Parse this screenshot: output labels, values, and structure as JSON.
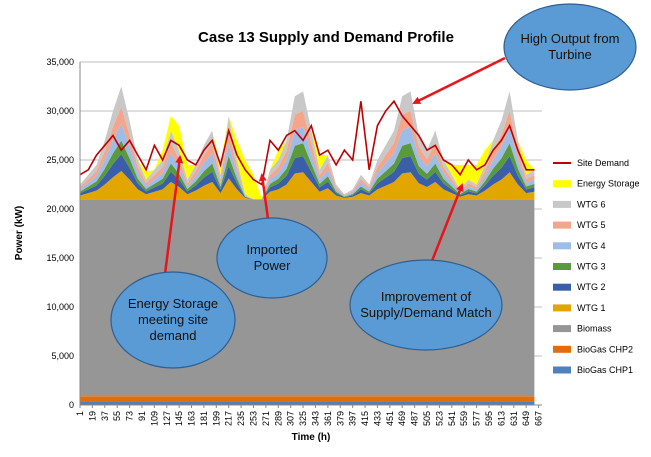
{
  "chart_data": {
    "type": "area",
    "title": "Case 13 Supply and Demand Profile",
    "x_label": "Time (h)",
    "y_label": "Power (kW)",
    "xlim": [
      1,
      672
    ],
    "xticks": [
      1,
      19,
      37,
      55,
      73,
      91,
      109,
      127,
      145,
      163,
      181,
      199,
      217,
      235,
      253,
      271,
      289,
      307,
      325,
      343,
      361,
      379,
      397,
      415,
      433,
      451,
      469,
      487,
      505,
      523,
      541,
      559,
      577,
      595,
      613,
      631,
      649,
      667
    ],
    "ylim": [
      0,
      35000
    ],
    "yticks": [
      0,
      {
        "value": 5000,
        "label": "5,000"
      },
      {
        "value": 10000,
        "label": "10,000"
      },
      {
        "value": 15000,
        "label": "15,000"
      },
      {
        "value": 20000,
        "label": "20,000"
      },
      {
        "value": 25000,
        "label": "25,000"
      },
      {
        "value": 30000,
        "label": "30,000"
      },
      {
        "value": 35000,
        "label": "35,000"
      }
    ],
    "grid": true,
    "x": [
      1,
      13,
      25,
      37,
      49,
      61,
      73,
      85,
      97,
      109,
      121,
      133,
      145,
      157,
      169,
      181,
      193,
      205,
      217,
      229,
      241,
      253,
      265,
      277,
      289,
      301,
      313,
      325,
      337,
      349,
      361,
      373,
      385,
      397,
      409,
      421,
      433,
      445,
      457,
      469,
      481,
      493,
      505,
      517,
      529,
      541,
      553,
      565,
      577,
      589,
      601,
      613,
      625,
      637,
      649,
      661
    ],
    "series": [
      {
        "name": "BioGas CHP1",
        "color": "#4f81bd",
        "values": [
          400,
          400,
          400,
          400,
          400,
          400,
          400,
          400,
          400,
          400,
          400,
          400,
          400,
          400,
          400,
          400,
          400,
          400,
          400,
          400,
          400,
          400,
          400,
          400,
          400,
          400,
          400,
          400,
          400,
          400,
          400,
          400,
          400,
          400,
          400,
          400,
          400,
          400,
          400,
          400,
          400,
          400,
          400,
          400,
          400,
          400,
          400,
          400,
          400,
          400,
          400,
          400,
          400,
          400,
          400,
          400
        ]
      },
      {
        "name": "BioGas CHP2",
        "color": "#e46c0a",
        "values": [
          500,
          500,
          500,
          500,
          500,
          500,
          500,
          500,
          500,
          500,
          500,
          500,
          500,
          500,
          500,
          500,
          500,
          500,
          500,
          500,
          500,
          500,
          500,
          500,
          500,
          500,
          500,
          500,
          500,
          500,
          500,
          500,
          500,
          500,
          500,
          500,
          500,
          500,
          500,
          500,
          500,
          500,
          500,
          500,
          500,
          500,
          500,
          500,
          500,
          500,
          500,
          500,
          500,
          500,
          500,
          500
        ]
      },
      {
        "name": "Biomass",
        "color": "#969696",
        "values": [
          20100,
          20100,
          20100,
          20100,
          20100,
          20100,
          20100,
          20100,
          20100,
          20100,
          20100,
          20100,
          20100,
          20100,
          20100,
          20100,
          20100,
          20100,
          20100,
          20100,
          20100,
          20100,
          20100,
          20100,
          20100,
          20100,
          20100,
          20100,
          20100,
          20100,
          20100,
          20100,
          20100,
          20100,
          20100,
          20100,
          20100,
          20100,
          20100,
          20100,
          20100,
          20100,
          20100,
          20100,
          20100,
          20100,
          20100,
          20100,
          20100,
          20100,
          20100,
          20100,
          20100,
          20100,
          20100,
          20100
        ]
      },
      {
        "name": "WTG 1",
        "color": "#e3a600",
        "values": [
          375,
          625,
          875,
          1500,
          2250,
          2875,
          2000,
          1000,
          500,
          750,
          1000,
          1750,
          1250,
          500,
          875,
          1375,
          1750,
          625,
          2125,
          1000,
          125,
          0,
          0,
          750,
          1000,
          1500,
          2625,
          2750,
          1750,
          750,
          1125,
          375,
          125,
          250,
          625,
          375,
          1000,
          1375,
          1750,
          2625,
          2750,
          1625,
          1250,
          1750,
          1000,
          625,
          250,
          500,
          375,
          875,
          1500,
          2000,
          2750,
          1500,
          625,
          750
        ]
      },
      {
        "name": "WTG 2",
        "color": "#3a5fa8",
        "values": [
          225,
          375,
          525,
          900,
          1350,
          1725,
          1200,
          600,
          300,
          450,
          600,
          1050,
          750,
          300,
          525,
          825,
          1050,
          375,
          1275,
          600,
          75,
          0,
          0,
          450,
          600,
          900,
          1575,
          1650,
          1050,
          450,
          675,
          225,
          75,
          150,
          375,
          225,
          600,
          825,
          1050,
          1575,
          1650,
          975,
          750,
          1050,
          600,
          375,
          150,
          300,
          225,
          525,
          900,
          1200,
          1650,
          900,
          375,
          450
        ]
      },
      {
        "name": "WTG 3",
        "color": "#5a9a3c",
        "values": [
          180,
          300,
          420,
          720,
          1080,
          1380,
          960,
          480,
          240,
          360,
          480,
          840,
          600,
          240,
          420,
          660,
          840,
          300,
          1020,
          480,
          60,
          0,
          0,
          360,
          480,
          720,
          1260,
          1320,
          840,
          360,
          540,
          180,
          60,
          120,
          300,
          180,
          480,
          660,
          840,
          1260,
          1320,
          780,
          600,
          840,
          480,
          300,
          120,
          240,
          180,
          420,
          720,
          960,
          1320,
          720,
          300,
          360
        ]
      },
      {
        "name": "WTG 4",
        "color": "#9dbde6",
        "values": [
          225,
          375,
          525,
          900,
          1350,
          1725,
          1200,
          600,
          300,
          450,
          600,
          1050,
          750,
          300,
          525,
          825,
          1050,
          375,
          1275,
          600,
          75,
          0,
          0,
          450,
          600,
          900,
          1575,
          1650,
          1050,
          450,
          675,
          225,
          75,
          150,
          375,
          225,
          600,
          825,
          1050,
          1575,
          1650,
          975,
          750,
          1050,
          600,
          375,
          150,
          300,
          225,
          525,
          900,
          1200,
          1650,
          900,
          375,
          450
        ]
      },
      {
        "name": "WTG 5",
        "color": "#f4a58a",
        "values": [
          225,
          375,
          525,
          900,
          1350,
          1725,
          1200,
          600,
          300,
          450,
          600,
          1050,
          750,
          300,
          525,
          825,
          1050,
          375,
          1275,
          600,
          75,
          0,
          0,
          450,
          600,
          900,
          1575,
          1650,
          1050,
          450,
          675,
          225,
          75,
          150,
          375,
          225,
          600,
          825,
          1050,
          1575,
          1650,
          975,
          750,
          1050,
          600,
          375,
          150,
          300,
          225,
          525,
          900,
          1200,
          1650,
          900,
          375,
          450
        ]
      },
      {
        "name": "WTG 6",
        "color": "#c8c8c8",
        "values": [
          270,
          450,
          630,
          1080,
          1620,
          2070,
          1440,
          720,
          360,
          540,
          720,
          1260,
          900,
          360,
          630,
          990,
          1260,
          450,
          1530,
          720,
          90,
          0,
          0,
          540,
          720,
          1080,
          1890,
          1980,
          1260,
          540,
          810,
          270,
          90,
          180,
          450,
          270,
          720,
          990,
          1260,
          1890,
          1980,
          1170,
          900,
          1260,
          720,
          450,
          180,
          360,
          270,
          630,
          1080,
          1440,
          1980,
          1080,
          450,
          540
        ]
      },
      {
        "name": "Energy Storage",
        "color": "#ffff00",
        "values": [
          0,
          0,
          0,
          0,
          0,
          0,
          0,
          0,
          800,
          0,
          1000,
          1500,
          2500,
          1500,
          0,
          0,
          0,
          1000,
          0,
          2000,
          3500,
          2500,
          0,
          0,
          1000,
          0,
          0,
          0,
          0,
          1500,
          0,
          0,
          0,
          0,
          0,
          0,
          0,
          0,
          0,
          0,
          0,
          0,
          0,
          0,
          0,
          1000,
          2500,
          1500,
          2000,
          1500,
          0,
          0,
          0,
          0,
          1500,
          0
        ]
      },
      {
        "name": "Site Demand",
        "color": "#c00000",
        "type": "line",
        "values": [
          23500,
          24000,
          25500,
          26500,
          27500,
          26000,
          27000,
          25500,
          24000,
          26500,
          25000,
          27000,
          26500,
          25000,
          24500,
          26000,
          27000,
          24500,
          28000,
          25500,
          24000,
          23000,
          22500,
          27000,
          26000,
          27500,
          28000,
          27000,
          28500,
          25500,
          26000,
          24500,
          26000,
          25000,
          31000,
          24000,
          28500,
          30000,
          31000,
          29500,
          28500,
          27500,
          26000,
          26500,
          25000,
          24500,
          23500,
          25000,
          24000,
          24500,
          26000,
          27000,
          28500,
          26000,
          24000,
          24000
        ]
      }
    ],
    "annotations": [
      {
        "text": "High Output from Turbine"
      },
      {
        "text": "Energy Storage meeting site demand"
      },
      {
        "text": "Imported Power"
      },
      {
        "text": "Improvement of Supply/Demand Match"
      }
    ]
  }
}
